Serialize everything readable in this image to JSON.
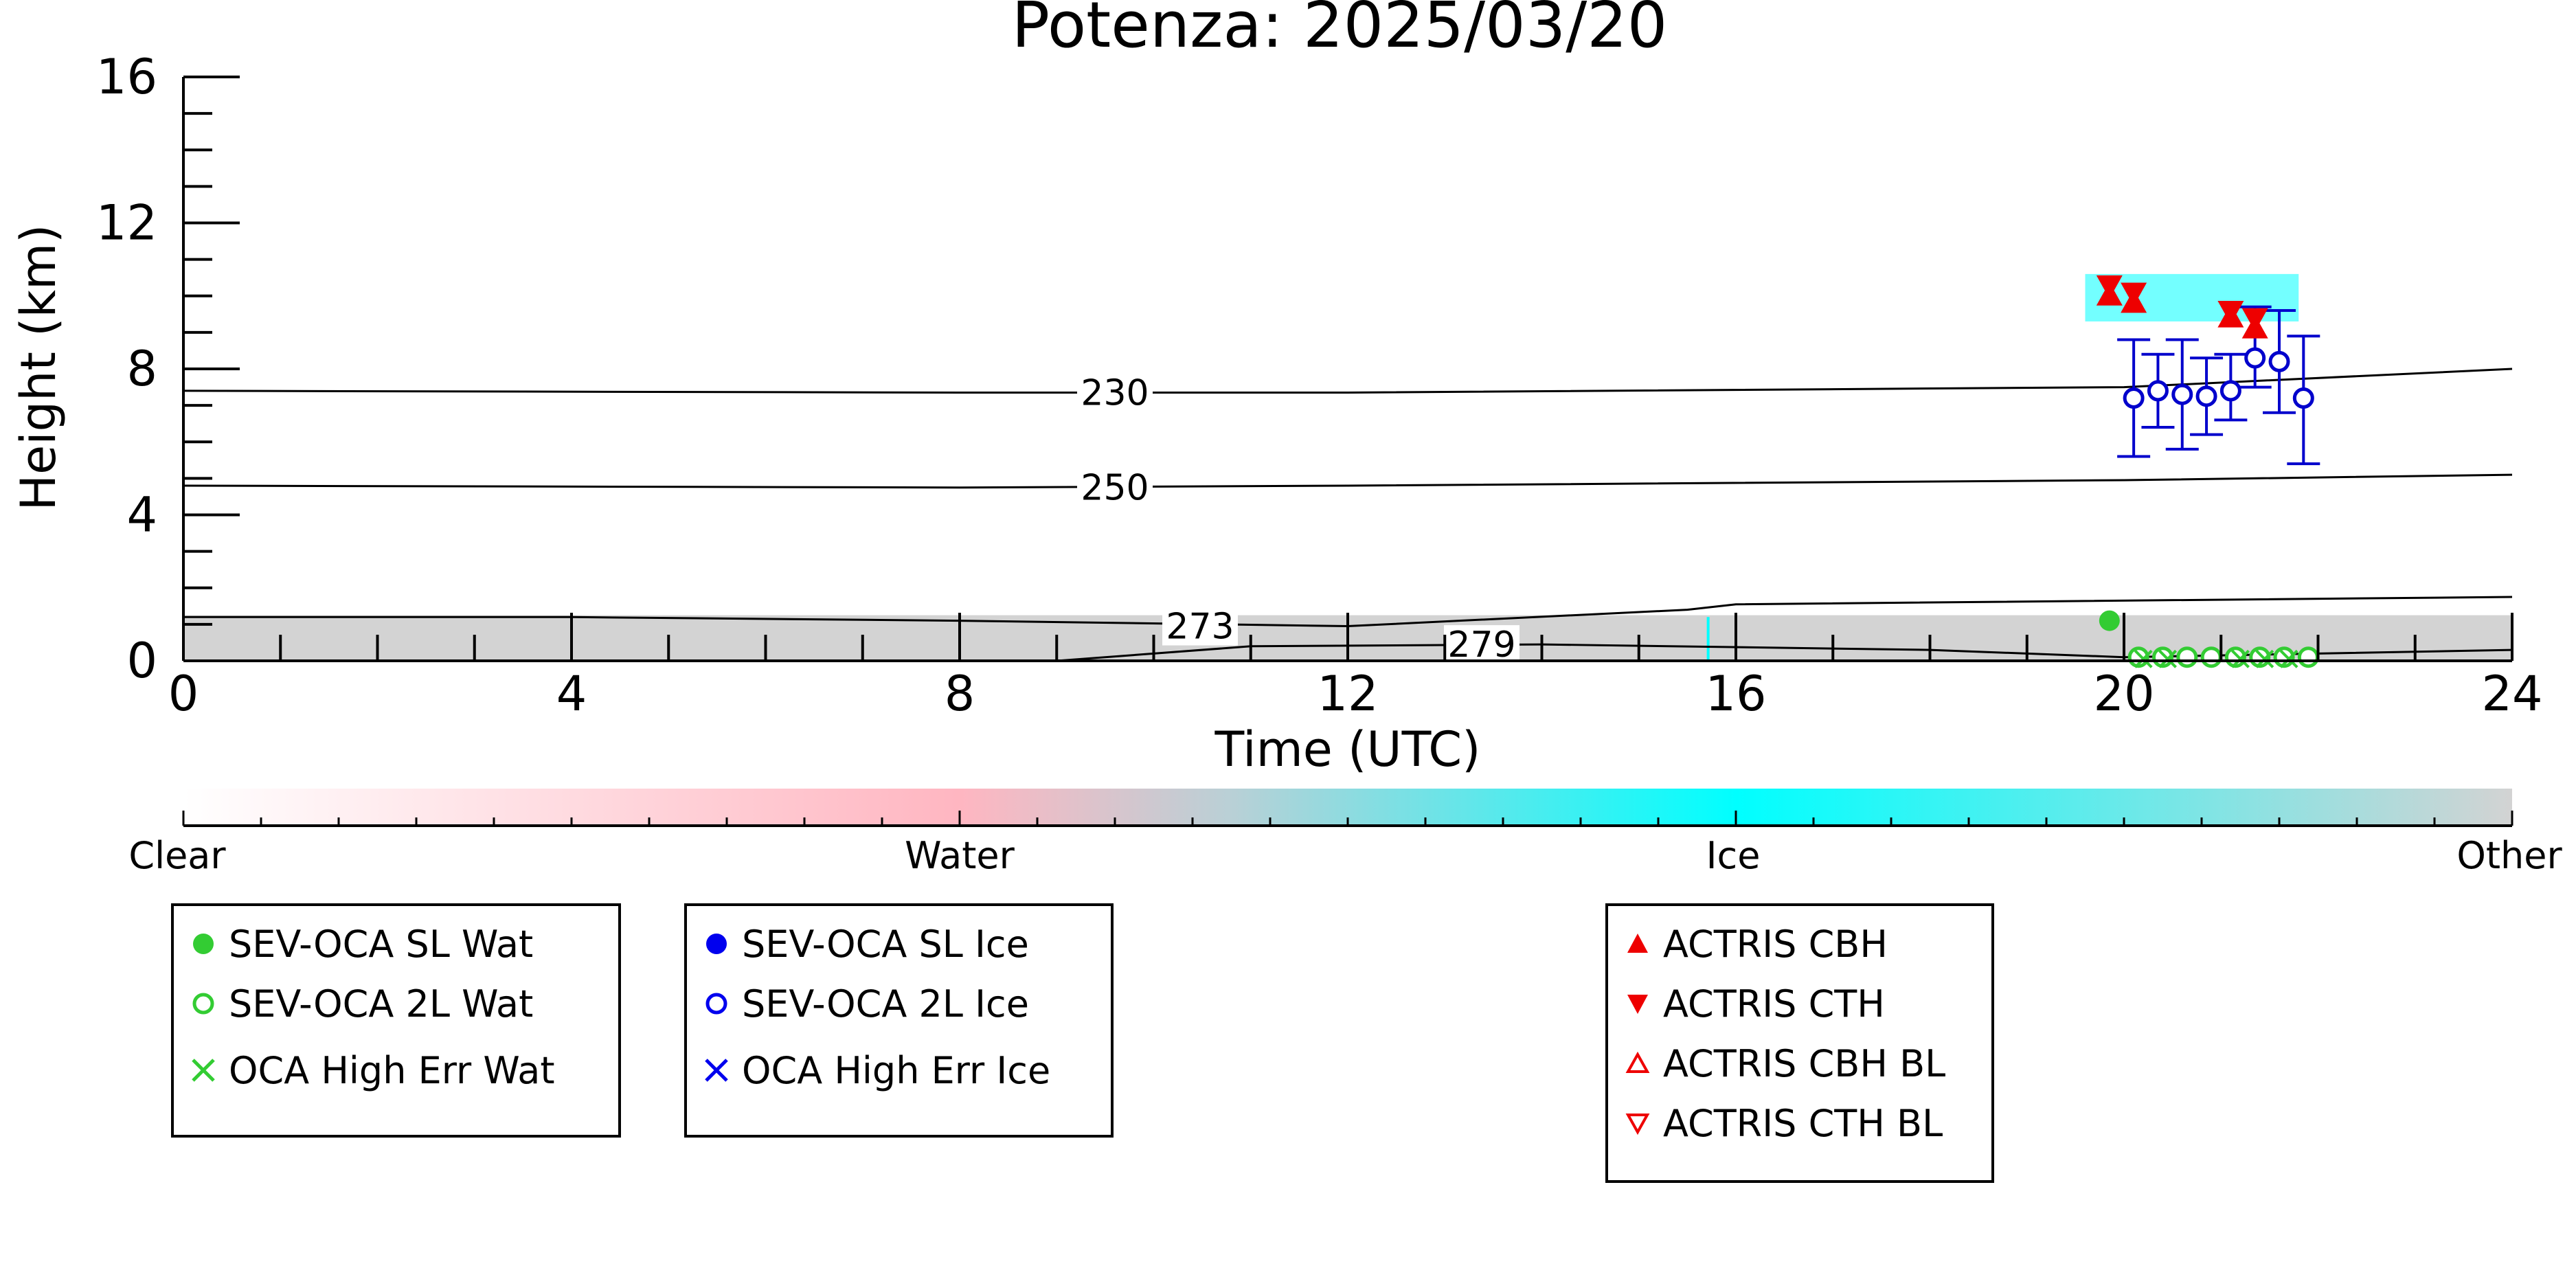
{
  "chart_data": {
    "type": "scatter",
    "title": "Potenza: 2025/03/20",
    "xlabel": "Time (UTC)",
    "ylabel": "Height (km)",
    "xlim": [
      0,
      24
    ],
    "ylim": [
      0,
      16
    ],
    "xticks": [
      "0",
      "4",
      "8",
      "12",
      "16",
      "20",
      "24"
    ],
    "yticks": [
      "0",
      "4",
      "8",
      "12",
      "16"
    ],
    "contours": [
      {
        "label": "230",
        "points": [
          [
            0,
            7.4
          ],
          [
            8,
            7.35
          ],
          [
            12,
            7.35
          ],
          [
            20,
            7.5
          ],
          [
            24,
            8.0
          ]
        ]
      },
      {
        "label": "250",
        "points": [
          [
            0,
            4.8
          ],
          [
            8,
            4.75
          ],
          [
            12,
            4.8
          ],
          [
            20,
            4.95
          ],
          [
            24,
            5.1
          ]
        ]
      },
      {
        "label": "273",
        "points": [
          [
            0,
            1.2
          ],
          [
            4,
            1.2
          ],
          [
            8,
            1.1
          ],
          [
            12,
            0.95
          ],
          [
            15.5,
            1.4
          ],
          [
            16,
            1.55
          ],
          [
            24,
            1.75
          ]
        ]
      },
      {
        "label": "279",
        "points": [
          [
            9,
            0
          ],
          [
            11,
            0.4
          ],
          [
            14,
            0.45
          ],
          [
            18,
            0.3
          ],
          [
            20,
            0.1
          ],
          [
            22,
            0.2
          ],
          [
            24,
            0.3
          ]
        ]
      }
    ],
    "series": [
      {
        "name": "SEV-OCA SL Wat",
        "color": "#33cc33",
        "marker": "filled-circle",
        "x": [
          19.85
        ],
        "y": [
          1.1
        ]
      },
      {
        "name": "SEV-OCA 2L Wat",
        "color": "#33cc33",
        "marker": "open-circle",
        "x": [
          20.15,
          20.4,
          20.65,
          20.9,
          21.15,
          21.4,
          21.65,
          21.9
        ],
        "y": [
          0.1,
          0.1,
          0.1,
          0.1,
          0.1,
          0.1,
          0.1,
          0.1
        ]
      },
      {
        "name": "OCA High Err Wat",
        "color": "#33cc33",
        "marker": "x",
        "x": [
          20.2,
          20.45,
          21.2,
          21.45,
          21.7
        ],
        "y": [
          0.05,
          0.05,
          0.05,
          0.05,
          0.05
        ]
      },
      {
        "name": "SEV-OCA 2L Ice",
        "color": "#0000cc",
        "marker": "open-circle",
        "x": [
          20.1,
          20.35,
          20.6,
          20.85,
          21.1,
          21.35,
          21.6,
          21.85
        ],
        "y": [
          7.2,
          7.4,
          7.3,
          7.25,
          7.4,
          8.3,
          8.2,
          7.2
        ],
        "err_low": [
          5.6,
          6.4,
          5.8,
          6.2,
          6.6,
          7.5,
          6.8,
          5.4
        ],
        "err_high": [
          8.8,
          8.4,
          8.8,
          8.3,
          8.4,
          9.7,
          9.6,
          8.9
        ]
      },
      {
        "name": "ACTRIS CBH",
        "color": "#ee0000",
        "marker": "triangle-up",
        "x": [
          19.85,
          20.1,
          21.1,
          21.35
        ],
        "y": [
          10.0,
          9.8,
          9.4,
          9.1
        ]
      },
      {
        "name": "ACTRIS CTH",
        "color": "#ee0000",
        "marker": "triangle-down",
        "x": [
          19.85,
          20.1,
          21.1,
          21.35
        ],
        "y": [
          10.3,
          10.1,
          9.6,
          9.4
        ]
      }
    ],
    "colorbar": {
      "labels": [
        "Clear",
        "Water",
        "Ice",
        "Other"
      ],
      "colors": [
        "#ffffff",
        "#ffb6c1",
        "#00ffff",
        "#d3d3d3"
      ]
    }
  },
  "legends": [
    [
      "SEV-OCA SL Wat",
      "SEV-OCA 2L Wat",
      "OCA High Err Wat"
    ],
    [
      "SEV-OCA SL Ice",
      "SEV-OCA 2L Ice",
      "OCA High Err Ice"
    ],
    [
      "ACTRIS CBH",
      "ACTRIS CTH",
      "ACTRIS CBH BL",
      "ACTRIS CTH BL"
    ]
  ]
}
